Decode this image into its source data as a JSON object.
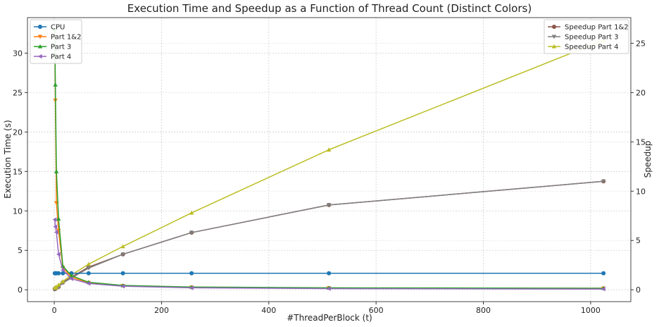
{
  "chart_data": {
    "type": "line",
    "title": "Execution Time and Speedup as a Function of Thread Count (Distinct Colors)",
    "xlabel": "#ThreadPerBlock (t)",
    "ylabel_left": "Execution Time (s)",
    "ylabel_right": "Speedup",
    "xlim": [
      -50,
      1075
    ],
    "ylim_left": [
      -1.5,
      34.5
    ],
    "ylim_right": [
      -1.2,
      27.6
    ],
    "xticks": [
      0,
      200,
      400,
      600,
      800,
      1000
    ],
    "yticks_left": [
      0,
      5,
      10,
      15,
      20,
      25,
      30
    ],
    "yticks_right": [
      0,
      5,
      10,
      15,
      20,
      25
    ],
    "grid": true,
    "x": [
      1,
      2,
      4,
      8,
      16,
      32,
      64,
      128,
      256,
      512,
      1024
    ],
    "series_left": [
      {
        "name": "CPU",
        "color": "#1f77b4",
        "marker": "circle",
        "values": [
          2.1,
          2.1,
          2.1,
          2.1,
          2.1,
          2.1,
          2.1,
          2.1,
          2.1,
          2.1,
          2.1
        ]
      },
      {
        "name": "Part 1&2",
        "color": "#ff7f0e",
        "marker": "triangle-down",
        "values": [
          32.0,
          24.0,
          11.0,
          7.5,
          2.8,
          1.6,
          0.9,
          0.5,
          0.3,
          0.22,
          0.19
        ]
      },
      {
        "name": "Part 3",
        "color": "#2ca02c",
        "marker": "triangle-up",
        "values": [
          33.0,
          26.0,
          15.0,
          9.0,
          3.0,
          1.8,
          0.95,
          0.55,
          0.35,
          0.25,
          0.2
        ]
      },
      {
        "name": "Part 4",
        "color": "#9467bd",
        "marker": "triangle-left",
        "values": [
          8.9,
          8.0,
          7.3,
          4.5,
          2.5,
          1.4,
          0.8,
          0.45,
          0.25,
          0.15,
          0.1
        ]
      }
    ],
    "series_right": [
      {
        "name": "Speedup Part 1&2",
        "color": "#8c564b",
        "marker": "circle",
        "values": [
          0.07,
          0.1,
          0.2,
          0.3,
          0.75,
          1.3,
          2.3,
          3.6,
          5.8,
          8.6,
          11.0
        ]
      },
      {
        "name": "Speedup Part 3",
        "color": "#7f7f7f",
        "marker": "triangle-down",
        "values": [
          0.06,
          0.08,
          0.15,
          0.25,
          0.7,
          1.2,
          2.2,
          3.6,
          5.8,
          8.6,
          11.0
        ]
      },
      {
        "name": "Speedup Part 4",
        "color": "#bcbd22",
        "marker": "triangle-up",
        "values": [
          0.2,
          0.25,
          0.3,
          0.5,
          0.85,
          1.5,
          2.6,
          4.4,
          7.8,
          14.2,
          25.3
        ]
      }
    ]
  }
}
